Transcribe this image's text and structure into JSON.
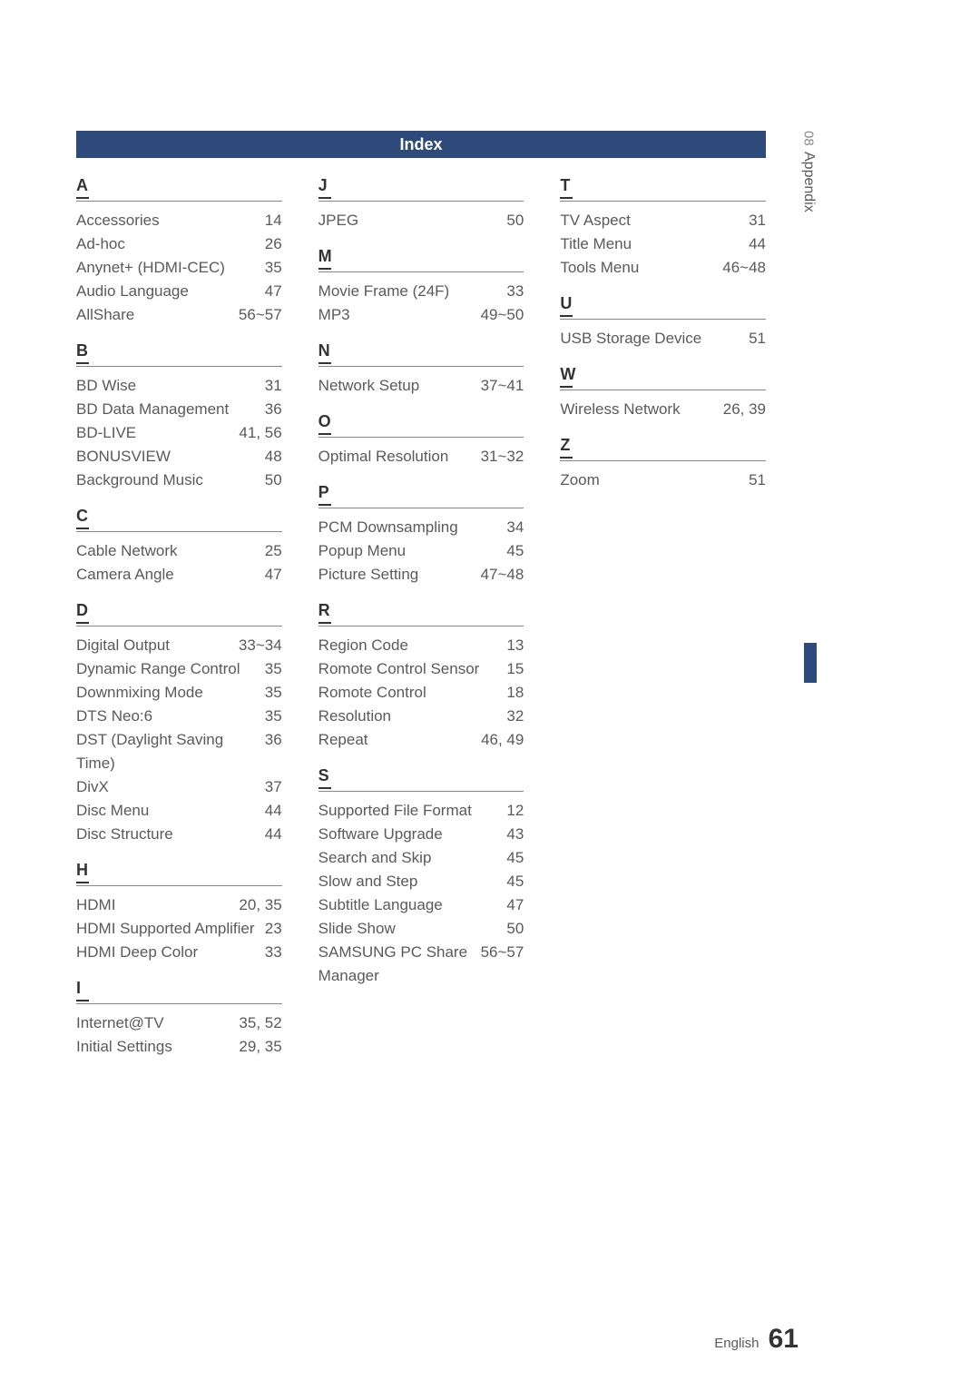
{
  "header_title": "Index",
  "side_tab": {
    "num": "08",
    "label": "Appendix"
  },
  "footer": {
    "lang": "English",
    "page": "61"
  },
  "columns": [
    {
      "sections": [
        {
          "letter": "A",
          "entries": [
            {
              "label": "Accessories",
              "pages": "14"
            },
            {
              "label": "Ad-hoc",
              "pages": "26"
            },
            {
              "label": "Anynet+ (HDMI-CEC)",
              "pages": "35"
            },
            {
              "label": "Audio Language",
              "pages": "47"
            },
            {
              "label": "AllShare",
              "pages": "56~57"
            }
          ]
        },
        {
          "letter": "B",
          "entries": [
            {
              "label": "BD Wise",
              "pages": "31"
            },
            {
              "label": "BD Data Management",
              "pages": "36"
            },
            {
              "label": "BD-LIVE",
              "pages": "41, 56"
            },
            {
              "label": "BONUSVIEW",
              "pages": "48"
            },
            {
              "label": "Background Music",
              "pages": "50"
            }
          ]
        },
        {
          "letter": "C",
          "entries": [
            {
              "label": "Cable Network",
              "pages": "25"
            },
            {
              "label": "Camera Angle",
              "pages": "47"
            }
          ]
        },
        {
          "letter": "D",
          "entries": [
            {
              "label": "Digital Output",
              "pages": "33~34"
            },
            {
              "label": "Dynamic Range Control",
              "pages": "35"
            },
            {
              "label": "Downmixing Mode",
              "pages": "35"
            },
            {
              "label": "DTS Neo:6",
              "pages": "35"
            },
            {
              "label": "DST (Daylight Saving Time)",
              "pages": "36"
            },
            {
              "label": "DivX",
              "pages": "37"
            },
            {
              "label": "Disc Menu",
              "pages": "44"
            },
            {
              "label": "Disc Structure",
              "pages": "44"
            }
          ]
        },
        {
          "letter": "H",
          "entries": [
            {
              "label": "HDMI",
              "pages": "20, 35"
            },
            {
              "label": "HDMI Supported Amplifier",
              "pages": "23"
            },
            {
              "label": "HDMI Deep Color",
              "pages": "33"
            }
          ]
        },
        {
          "letter": "I",
          "entries": [
            {
              "label": "Internet@TV",
              "pages": "35, 52"
            },
            {
              "label": "Initial Settings",
              "pages": "29, 35"
            }
          ]
        }
      ]
    },
    {
      "sections": [
        {
          "letter": "J",
          "entries": [
            {
              "label": "JPEG",
              "pages": "50"
            }
          ]
        },
        {
          "letter": "M",
          "entries": [
            {
              "label": "Movie Frame (24F)",
              "pages": "33"
            },
            {
              "label": "MP3",
              "pages": "49~50"
            }
          ]
        },
        {
          "letter": "N",
          "entries": [
            {
              "label": "Network Setup",
              "pages": "37~41"
            }
          ]
        },
        {
          "letter": "O",
          "entries": [
            {
              "label": "Optimal Resolution",
              "pages": "31~32"
            }
          ]
        },
        {
          "letter": "P",
          "entries": [
            {
              "label": "PCM Downsampling",
              "pages": "34"
            },
            {
              "label": "Popup Menu",
              "pages": "45"
            },
            {
              "label": "Picture Setting",
              "pages": "47~48"
            }
          ]
        },
        {
          "letter": "R",
          "entries": [
            {
              "label": "Region Code",
              "pages": "13"
            },
            {
              "label": "Romote Control Sensor",
              "pages": "15"
            },
            {
              "label": "Romote Control",
              "pages": "18"
            },
            {
              "label": "Resolution",
              "pages": "32"
            },
            {
              "label": "Repeat",
              "pages": "46, 49"
            }
          ]
        },
        {
          "letter": "S",
          "entries": [
            {
              "label": "Supported File Format",
              "pages": "12"
            },
            {
              "label": "Software Upgrade",
              "pages": "43"
            },
            {
              "label": "Search and Skip",
              "pages": "45"
            },
            {
              "label": "Slow and Step",
              "pages": "45"
            },
            {
              "label": "Subtitle Language",
              "pages": "47"
            },
            {
              "label": "Slide Show",
              "pages": "50"
            },
            {
              "label": "SAMSUNG PC Share Manager",
              "pages": "56~57"
            }
          ]
        }
      ]
    },
    {
      "sections": [
        {
          "letter": "T",
          "entries": [
            {
              "label": "TV Aspect",
              "pages": "31"
            },
            {
              "label": "Title Menu",
              "pages": "44"
            },
            {
              "label": "Tools Menu",
              "pages": "46~48"
            }
          ]
        },
        {
          "letter": "U",
          "entries": [
            {
              "label": "USB Storage Device",
              "pages": "51"
            }
          ]
        },
        {
          "letter": "W",
          "entries": [
            {
              "label": "Wireless Network",
              "pages": "26, 39"
            }
          ]
        },
        {
          "letter": "Z",
          "entries": [
            {
              "label": "Zoom",
              "pages": "51"
            }
          ]
        }
      ]
    }
  ]
}
